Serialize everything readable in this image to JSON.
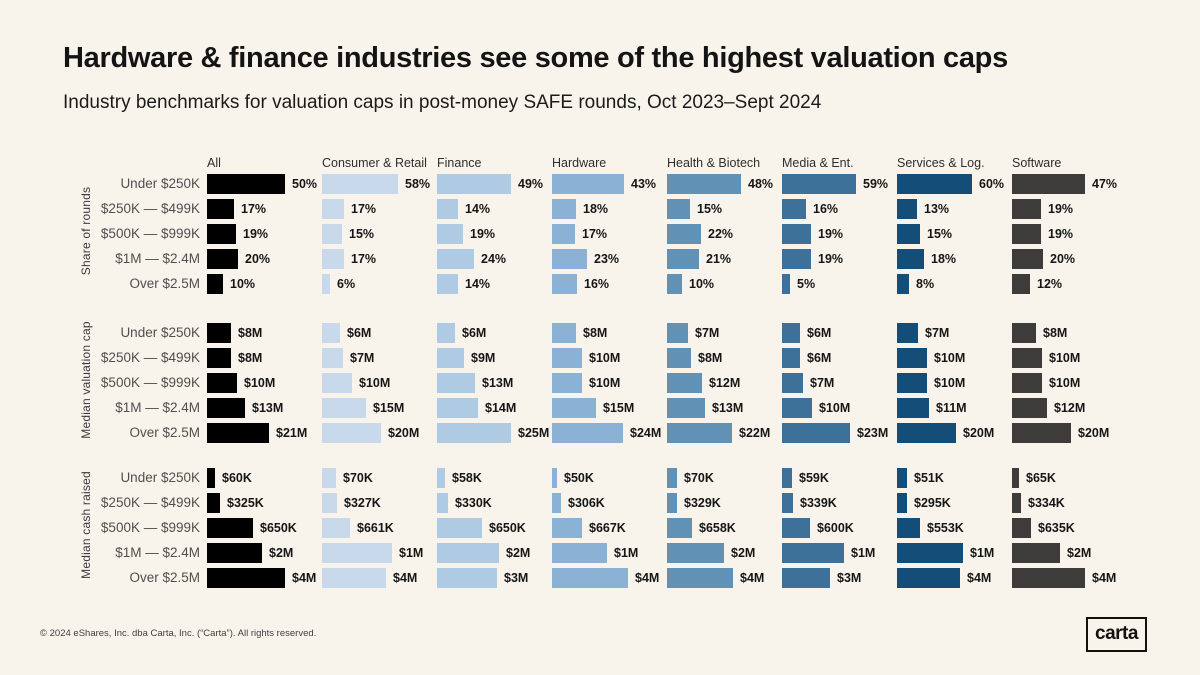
{
  "header": {
    "title": "Hardware & finance industries see some of the highest valuation caps",
    "subtitle": "Industry benchmarks for valuation caps in post-money SAFE rounds, Oct 2023–Sept 2024"
  },
  "footer": {
    "copyright": "© 2024 eShares, Inc. dba Carta, Inc. (“Carta”). All rights reserved.",
    "logo_text": "carta"
  },
  "colors": {
    "background": "#f8f4ec",
    "all": "#000000",
    "consumer_retail": "#c7d9eb",
    "finance": "#afcbe3",
    "hardware": "#8bb2d4",
    "health_biotech": "#6191b5",
    "media_ent": "#3d7199",
    "services_log": "#134d78",
    "software": "#3e3c3a"
  },
  "chart_data": {
    "type": "bar",
    "title": "Hardware & finance industries see some of the highest valuation caps",
    "subtitle": "Industry benchmarks for valuation caps in post-money SAFE rounds, Oct 2023–Sept 2024",
    "orientation": "horizontal",
    "grid": false,
    "legend": "none",
    "column_headers": [
      "All",
      "Consumer & Retail",
      "Finance",
      "Hardware",
      "Health & Biotech",
      "Media & Ent.",
      "Services & Log.",
      "Software"
    ],
    "column_colors": [
      "#000000",
      "#c7d9eb",
      "#afcbe3",
      "#8bb2d4",
      "#6191b5",
      "#3d7199",
      "#134d78",
      "#3e3c3a"
    ],
    "row_labels": [
      "Under $250K",
      "$250K — $499K",
      "$500K — $999K",
      "$1M — $2.4M",
      "Over $2.5M"
    ],
    "groups": [
      {
        "label": "Share of rounds",
        "unit": "percent of rounds",
        "series": [
          {
            "name": "All",
            "labels": [
              "50%",
              "17%",
              "19%",
              "20%",
              "10%"
            ],
            "values": [
              50,
              17,
              19,
              20,
              10
            ],
            "widths": [
              78,
              27,
              29,
              31,
              16
            ]
          },
          {
            "name": "Consumer & Retail",
            "labels": [
              "58%",
              "17%",
              "15%",
              "17%",
              "6%"
            ],
            "values": [
              58,
              17,
              15,
              17,
              6
            ],
            "widths": [
              76,
              22,
              20,
              22,
              8
            ]
          },
          {
            "name": "Finance",
            "labels": [
              "49%",
              "14%",
              "19%",
              "24%",
              "14%"
            ],
            "values": [
              49,
              14,
              19,
              24,
              14
            ],
            "widths": [
              74,
              21,
              26,
              37,
              21
            ]
          },
          {
            "name": "Hardware",
            "labels": [
              "43%",
              "18%",
              "17%",
              "23%",
              "16%"
            ],
            "values": [
              43,
              18,
              17,
              23,
              16
            ],
            "widths": [
              72,
              24,
              23,
              35,
              25
            ]
          },
          {
            "name": "Health & Biotech",
            "labels": [
              "48%",
              "15%",
              "22%",
              "21%",
              "10%"
            ],
            "values": [
              48,
              15,
              22,
              21,
              10
            ],
            "widths": [
              74,
              23,
              34,
              32,
              15
            ]
          },
          {
            "name": "Media & Ent.",
            "labels": [
              "59%",
              "16%",
              "19%",
              "19%",
              "5%"
            ],
            "values": [
              59,
              16,
              19,
              19,
              5
            ],
            "widths": [
              74,
              24,
              29,
              29,
              8
            ]
          },
          {
            "name": "Services & Log.",
            "labels": [
              "60%",
              "13%",
              "15%",
              "18%",
              "8%"
            ],
            "values": [
              60,
              13,
              15,
              18,
              8
            ],
            "widths": [
              75,
              20,
              23,
              27,
              12
            ]
          },
          {
            "name": "Software",
            "labels": [
              "47%",
              "19%",
              "19%",
              "20%",
              "12%"
            ],
            "values": [
              47,
              19,
              19,
              20,
              12
            ],
            "widths": [
              73,
              29,
              29,
              31,
              18
            ]
          }
        ]
      },
      {
        "label": "Median valuation cap",
        "unit": "USD millions",
        "series": [
          {
            "name": "All",
            "labels": [
              "$8M",
              "$8M",
              "$10M",
              "$13M",
              "$21M"
            ],
            "values": [
              8,
              8,
              10,
              13,
              21
            ],
            "widths": [
              24,
              24,
              30,
              38,
              62
            ]
          },
          {
            "name": "Consumer & Retail",
            "labels": [
              "$6M",
              "$7M",
              "$10M",
              "$15M",
              "$20M"
            ],
            "values": [
              6,
              7,
              10,
              15,
              20
            ],
            "widths": [
              18,
              21,
              30,
              44,
              59
            ]
          },
          {
            "name": "Finance",
            "labels": [
              "$6M",
              "$9M",
              "$13M",
              "$14M",
              "$25M"
            ],
            "values": [
              6,
              9,
              13,
              14,
              25
            ],
            "widths": [
              18,
              27,
              38,
              41,
              74
            ]
          },
          {
            "name": "Hardware",
            "labels": [
              "$8M",
              "$10M",
              "$10M",
              "$15M",
              "$24M"
            ],
            "values": [
              8,
              10,
              10,
              15,
              24
            ],
            "widths": [
              24,
              30,
              30,
              44,
              71
            ]
          },
          {
            "name": "Health & Biotech",
            "labels": [
              "$7M",
              "$8M",
              "$12M",
              "$13M",
              "$22M"
            ],
            "values": [
              7,
              8,
              12,
              13,
              22
            ],
            "widths": [
              21,
              24,
              35,
              38,
              65
            ]
          },
          {
            "name": "Media & Ent.",
            "labels": [
              "$6M",
              "$6M",
              "$7M",
              "$10M",
              "$23M"
            ],
            "values": [
              6,
              6,
              7,
              10,
              23
            ],
            "widths": [
              18,
              18,
              21,
              30,
              68
            ]
          },
          {
            "name": "Services & Log.",
            "labels": [
              "$7M",
              "$10M",
              "$10M",
              "$11M",
              "$20M"
            ],
            "values": [
              7,
              10,
              10,
              11,
              20
            ],
            "widths": [
              21,
              30,
              30,
              32,
              59
            ]
          },
          {
            "name": "Software",
            "labels": [
              "$8M",
              "$10M",
              "$10M",
              "$12M",
              "$20M"
            ],
            "values": [
              8,
              10,
              10,
              12,
              20
            ],
            "widths": [
              24,
              30,
              30,
              35,
              59
            ]
          }
        ]
      },
      {
        "label": "Median cash raised",
        "unit": "USD",
        "series": [
          {
            "name": "All",
            "labels": [
              "$60K",
              "$325K",
              "$650K",
              "$2M",
              "$4M"
            ],
            "values": [
              60000,
              325000,
              650000,
              2000000,
              4000000
            ],
            "widths": [
              8,
              13,
              46,
              55,
              78
            ]
          },
          {
            "name": "Consumer & Retail",
            "labels": [
              "$70K",
              "$327K",
              "$661K",
              "$1M",
              "$4M"
            ],
            "values": [
              70000,
              327000,
              661000,
              1000000,
              4000000
            ],
            "widths": [
              14,
              15,
              28,
              70,
              64
            ]
          },
          {
            "name": "Finance",
            "labels": [
              "$58K",
              "$330K",
              "$650K",
              "$2M",
              "$3M"
            ],
            "values": [
              58000,
              330000,
              650000,
              2000000,
              3000000
            ],
            "widths": [
              8,
              11,
              45,
              62,
              60
            ]
          },
          {
            "name": "Hardware",
            "labels": [
              "$50K",
              "$306K",
              "$667K",
              "$1M",
              "$4M"
            ],
            "values": [
              50000,
              306000,
              667000,
              1000000,
              4000000
            ],
            "widths": [
              5,
              9,
              30,
              55,
              76
            ]
          },
          {
            "name": "Health & Biotech",
            "labels": [
              "$70K",
              "$329K",
              "$658K",
              "$2M",
              "$4M"
            ],
            "values": [
              70000,
              329000,
              658000,
              2000000,
              4000000
            ],
            "widths": [
              10,
              10,
              25,
              57,
              66
            ]
          },
          {
            "name": "Media & Ent.",
            "labels": [
              "$59K",
              "$339K",
              "$600K",
              "$1M",
              "$3M"
            ],
            "values": [
              59000,
              339000,
              600000,
              1000000,
              3000000
            ],
            "widths": [
              10,
              11,
              28,
              62,
              48
            ]
          },
          {
            "name": "Services & Log.",
            "labels": [
              "$51K",
              "$295K",
              "$553K",
              "$1M",
              "$4M"
            ],
            "values": [
              51000,
              295000,
              553000,
              1000000,
              4000000
            ],
            "widths": [
              10,
              10,
              23,
              66,
              63
            ]
          },
          {
            "name": "Software",
            "labels": [
              "$65K",
              "$334K",
              "$635K",
              "$2M",
              "$4M"
            ],
            "values": [
              65000,
              334000,
              635000,
              2000000,
              4000000
            ],
            "widths": [
              7,
              9,
              19,
              48,
              73
            ]
          }
        ]
      }
    ]
  }
}
